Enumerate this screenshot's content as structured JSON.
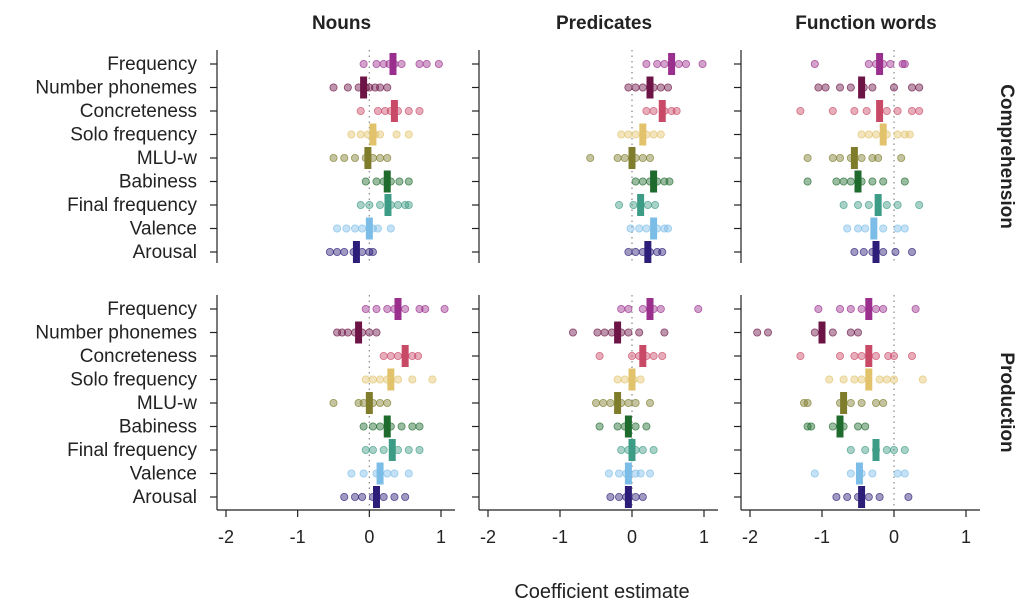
{
  "chart_data": {
    "type": "scatter",
    "xlabel": "Coefficient estimate",
    "xlim": [
      -2.1,
      1.2
    ],
    "xticks": [
      -2,
      -1,
      0,
      1
    ],
    "column_titles": [
      "Nouns",
      "Predicates",
      "Function words"
    ],
    "row_titles": [
      "Comprehension",
      "Production"
    ],
    "predictors": [
      "Frequency",
      "Number phonemes",
      "Concreteness",
      "Solo frequency",
      "MLU-w",
      "Babiness",
      "Final frequency",
      "Valence",
      "Arousal"
    ],
    "colors": {
      "Frequency": "#9b2f8e",
      "Number phonemes": "#6d1446",
      "Concreteness": "#c94a67",
      "Solo frequency": "#e2c36b",
      "MLU-w": "#7f7d2c",
      "Babiness": "#1f6b2e",
      "Final frequency": "#3d9c86",
      "Valence": "#7cbde8",
      "Arousal": "#2c1d78"
    },
    "panels": [
      {
        "measure": "Comprehension",
        "lexical_category": "Nouns",
        "estimates": [
          {
            "predictor": "Frequency",
            "mean": 0.33,
            "points": [
              -0.08,
              0.1,
              0.2,
              0.28,
              0.35,
              0.45,
              0.7,
              0.8,
              0.97
            ]
          },
          {
            "predictor": "Number phonemes",
            "mean": -0.08,
            "points": [
              -0.5,
              -0.3,
              -0.15,
              -0.05,
              0.0,
              0.08,
              0.15,
              0.25
            ]
          },
          {
            "predictor": "Concreteness",
            "mean": 0.35,
            "points": [
              -0.12,
              0.12,
              0.22,
              0.3,
              0.4,
              0.55,
              0.7
            ]
          },
          {
            "predictor": "Solo frequency",
            "mean": 0.05,
            "points": [
              -0.25,
              -0.12,
              -0.02,
              0.08,
              0.15,
              0.38,
              0.55
            ]
          },
          {
            "predictor": "MLU-w",
            "mean": -0.02,
            "points": [
              -0.5,
              -0.35,
              -0.2,
              -0.05,
              0.05,
              0.15,
              0.25
            ]
          },
          {
            "predictor": "Babiness",
            "mean": 0.25,
            "points": [
              -0.05,
              0.1,
              0.2,
              0.3,
              0.42,
              0.55
            ]
          },
          {
            "predictor": "Final frequency",
            "mean": 0.26,
            "points": [
              -0.12,
              0.0,
              0.15,
              0.3,
              0.4,
              0.5,
              0.55
            ]
          },
          {
            "predictor": "Valence",
            "mean": 0.0,
            "points": [
              -0.45,
              -0.32,
              -0.2,
              -0.1,
              0.05,
              0.12,
              0.3
            ]
          },
          {
            "predictor": "Arousal",
            "mean": -0.18,
            "points": [
              -0.55,
              -0.45,
              -0.35,
              -0.22,
              -0.1,
              0.0,
              0.05
            ]
          }
        ]
      },
      {
        "measure": "Comprehension",
        "lexical_category": "Predicates",
        "estimates": [
          {
            "predictor": "Frequency",
            "mean": 0.55,
            "points": [
              0.2,
              0.35,
              0.45,
              0.55,
              0.65,
              0.75,
              0.98
            ]
          },
          {
            "predictor": "Number phonemes",
            "mean": 0.25,
            "points": [
              -0.05,
              0.05,
              0.15,
              0.3,
              0.4,
              0.5
            ]
          },
          {
            "predictor": "Concreteness",
            "mean": 0.42,
            "points": [
              0.2,
              0.3,
              0.45,
              0.55,
              0.62
            ]
          },
          {
            "predictor": "Solo frequency",
            "mean": 0.15,
            "points": [
              -0.15,
              -0.05,
              0.05,
              0.2,
              0.3,
              0.4
            ]
          },
          {
            "predictor": "MLU-w",
            "mean": 0.0,
            "points": [
              -0.58,
              -0.2,
              -0.1,
              0.05,
              0.15,
              0.25
            ]
          },
          {
            "predictor": "Babiness",
            "mean": 0.3,
            "points": [
              0.05,
              0.15,
              0.25,
              0.35,
              0.45,
              0.52
            ]
          },
          {
            "predictor": "Final frequency",
            "mean": 0.12,
            "points": [
              -0.18,
              0.02,
              0.12,
              0.22,
              0.32
            ]
          },
          {
            "predictor": "Valence",
            "mean": 0.3,
            "points": [
              -0.02,
              0.1,
              0.2,
              0.35,
              0.45,
              0.5
            ]
          },
          {
            "predictor": "Arousal",
            "mean": 0.22,
            "points": [
              -0.05,
              0.05,
              0.15,
              0.25,
              0.35,
              0.42
            ]
          }
        ]
      },
      {
        "measure": "Comprehension",
        "lexical_category": "Function words",
        "estimates": [
          {
            "predictor": "Frequency",
            "mean": -0.2,
            "points": [
              -1.1,
              -0.35,
              -0.25,
              -0.15,
              -0.05,
              0.12,
              0.15
            ]
          },
          {
            "predictor": "Number phonemes",
            "mean": -0.45,
            "points": [
              -1.05,
              -0.95,
              -0.75,
              -0.6,
              -0.42,
              -0.3,
              0.0,
              0.25,
              0.35
            ]
          },
          {
            "predictor": "Concreteness",
            "mean": -0.2,
            "points": [
              -1.3,
              -0.85,
              -0.55,
              -0.38,
              -0.1,
              0.05,
              0.25,
              0.35
            ]
          },
          {
            "predictor": "Solo frequency",
            "mean": -0.15,
            "points": [
              -0.45,
              -0.35,
              -0.25,
              -0.1,
              0.05,
              0.15,
              0.22
            ]
          },
          {
            "predictor": "MLU-w",
            "mean": -0.55,
            "points": [
              -1.2,
              -0.85,
              -0.75,
              -0.6,
              -0.45,
              -0.3,
              -0.22,
              0.1
            ]
          },
          {
            "predictor": "Babiness",
            "mean": -0.5,
            "points": [
              -1.2,
              -0.8,
              -0.7,
              -0.6,
              -0.45,
              -0.3,
              -0.15,
              0.15
            ]
          },
          {
            "predictor": "Final frequency",
            "mean": -0.22,
            "points": [
              -0.7,
              -0.5,
              -0.35,
              -0.1,
              0.05,
              0.35
            ]
          },
          {
            "predictor": "Valence",
            "mean": -0.28,
            "points": [
              -0.65,
              -0.5,
              -0.4,
              -0.15,
              0.05,
              0.15
            ]
          },
          {
            "predictor": "Arousal",
            "mean": -0.25,
            "points": [
              -0.55,
              -0.42,
              -0.3,
              -0.15,
              0.02,
              0.25
            ]
          }
        ]
      },
      {
        "measure": "Production",
        "lexical_category": "Nouns",
        "estimates": [
          {
            "predictor": "Frequency",
            "mean": 0.4,
            "points": [
              -0.05,
              0.1,
              0.25,
              0.35,
              0.5,
              0.7,
              0.78,
              1.05
            ]
          },
          {
            "predictor": "Number phonemes",
            "mean": -0.15,
            "points": [
              -0.45,
              -0.38,
              -0.3,
              -0.2,
              -0.1,
              0.0,
              0.1
            ]
          },
          {
            "predictor": "Concreteness",
            "mean": 0.5,
            "points": [
              0.2,
              0.3,
              0.4,
              0.5,
              0.6,
              0.68
            ]
          },
          {
            "predictor": "Solo frequency",
            "mean": 0.3,
            "points": [
              -0.05,
              0.05,
              0.15,
              0.25,
              0.4,
              0.6,
              0.88
            ]
          },
          {
            "predictor": "MLU-w",
            "mean": 0.0,
            "points": [
              -0.5,
              -0.15,
              -0.08,
              0.05,
              0.15,
              0.25
            ]
          },
          {
            "predictor": "Babiness",
            "mean": 0.25,
            "points": [
              -0.08,
              0.05,
              0.15,
              0.3,
              0.45,
              0.6,
              0.7
            ]
          },
          {
            "predictor": "Final frequency",
            "mean": 0.32,
            "points": [
              -0.05,
              0.05,
              0.2,
              0.4,
              0.55,
              0.7
            ]
          },
          {
            "predictor": "Valence",
            "mean": 0.15,
            "points": [
              -0.25,
              -0.08,
              0.1,
              0.25,
              0.35,
              0.55
            ]
          },
          {
            "predictor": "Arousal",
            "mean": 0.1,
            "points": [
              -0.35,
              -0.2,
              -0.1,
              0.05,
              0.2,
              0.35,
              0.5
            ]
          }
        ]
      },
      {
        "measure": "Production",
        "lexical_category": "Predicates",
        "estimates": [
          {
            "predictor": "Frequency",
            "mean": 0.25,
            "points": [
              -0.15,
              -0.05,
              0.15,
              0.3,
              0.4,
              0.92
            ]
          },
          {
            "predictor": "Number phonemes",
            "mean": -0.2,
            "points": [
              -0.82,
              -0.48,
              -0.38,
              -0.28,
              -0.15,
              -0.05,
              0.1,
              0.45
            ]
          },
          {
            "predictor": "Concreteness",
            "mean": 0.15,
            "points": [
              -0.45,
              0.0,
              0.1,
              0.2,
              0.3,
              0.42
            ]
          },
          {
            "predictor": "Solo frequency",
            "mean": 0.0,
            "points": [
              -0.2,
              -0.1,
              0.02,
              0.12
            ]
          },
          {
            "predictor": "MLU-w",
            "mean": -0.2,
            "points": [
              -0.5,
              -0.4,
              -0.3,
              -0.15,
              -0.05,
              0.05,
              0.25
            ]
          },
          {
            "predictor": "Babiness",
            "mean": -0.05,
            "points": [
              -0.45,
              -0.2,
              -0.1,
              0.05,
              0.2
            ]
          },
          {
            "predictor": "Final frequency",
            "mean": 0.0,
            "points": [
              -0.15,
              -0.05,
              0.05,
              0.15,
              0.3
            ]
          },
          {
            "predictor": "Valence",
            "mean": -0.05,
            "points": [
              -0.32,
              -0.18,
              -0.08,
              0.05,
              0.12,
              0.25
            ]
          },
          {
            "predictor": "Arousal",
            "mean": -0.05,
            "points": [
              -0.3,
              -0.18,
              -0.08,
              0.05,
              0.15
            ]
          }
        ]
      },
      {
        "measure": "Production",
        "lexical_category": "Function words",
        "estimates": [
          {
            "predictor": "Frequency",
            "mean": -0.35,
            "points": [
              -1.05,
              -0.75,
              -0.6,
              -0.45,
              -0.25,
              -0.15,
              0.3
            ]
          },
          {
            "predictor": "Number phonemes",
            "mean": -1.0,
            "points": [
              -1.9,
              -1.75,
              -1.1,
              -0.85,
              -0.6,
              -0.5
            ]
          },
          {
            "predictor": "Concreteness",
            "mean": -0.35,
            "points": [
              -1.3,
              -0.75,
              -0.55,
              -0.45,
              -0.25,
              -0.08,
              0.0,
              0.25
            ]
          },
          {
            "predictor": "Solo frequency",
            "mean": -0.35,
            "points": [
              -0.9,
              -0.7,
              -0.55,
              -0.45,
              -0.2,
              -0.1,
              0.0,
              0.4
            ]
          },
          {
            "predictor": "MLU-w",
            "mean": -0.7,
            "points": [
              -1.25,
              -1.2,
              -0.75,
              -0.6,
              -0.45,
              -0.25,
              -0.15
            ]
          },
          {
            "predictor": "Babiness",
            "mean": -0.75,
            "points": [
              -1.2,
              -1.15,
              -0.85,
              -0.7,
              -0.5,
              -0.4
            ]
          },
          {
            "predictor": "Final frequency",
            "mean": -0.25,
            "points": [
              -0.6,
              -0.4,
              -0.25,
              -0.1,
              0.0,
              0.15
            ]
          },
          {
            "predictor": "Valence",
            "mean": -0.48,
            "points": [
              -1.1,
              -0.6,
              -0.45,
              -0.3,
              0.05,
              0.15
            ]
          },
          {
            "predictor": "Arousal",
            "mean": -0.45,
            "points": [
              -0.8,
              -0.65,
              -0.5,
              -0.35,
              -0.2,
              0.2
            ]
          }
        ]
      }
    ]
  }
}
